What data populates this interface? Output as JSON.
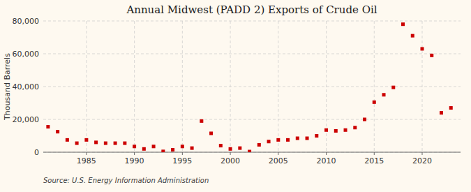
{
  "chart_data": {
    "type": "scatter",
    "title": "Annual Midwest (PADD 2) Exports of Crude Oil",
    "ylabel": "Thousand Barrels",
    "annotations": [
      "Source: U.S. Energy Information Administration"
    ],
    "x": [
      1981,
      1982,
      1983,
      1984,
      1985,
      1986,
      1987,
      1988,
      1989,
      1990,
      1991,
      1992,
      1993,
      1994,
      1995,
      1996,
      1997,
      1998,
      1999,
      2000,
      2001,
      2002,
      2003,
      2004,
      2005,
      2006,
      2007,
      2008,
      2009,
      2010,
      2011,
      2012,
      2013,
      2014,
      2015,
      2016,
      2017,
      2018,
      2019,
      2020,
      2021,
      2022,
      2023
    ],
    "values": [
      15500,
      12500,
      7500,
      5500,
      7500,
      6000,
      5500,
      5500,
      5500,
      3500,
      2000,
      3500,
      500,
      1500,
      3500,
      2500,
      19000,
      11500,
      4000,
      2000,
      2500,
      400,
      4500,
      6500,
      7500,
      7500,
      8500,
      8500,
      10000,
      13500,
      13000,
      13500,
      15000,
      20000,
      30500,
      35000,
      39500,
      78000,
      71000,
      63000,
      59000,
      24000,
      27000
    ],
    "color": "#cc0000",
    "marker": "square",
    "xlim": [
      1980.5,
      2024
    ],
    "ylim": [
      0,
      80000
    ],
    "xticks": [
      1985,
      1990,
      1995,
      2000,
      2005,
      2010,
      2015,
      2020
    ],
    "yticks": [
      0,
      {
        "value": 20000,
        "label": "20,000"
      },
      {
        "value": 40000,
        "label": "40,000"
      },
      {
        "value": 60000,
        "label": "60,000"
      },
      {
        "value": 80000,
        "label": "80,000"
      }
    ],
    "grid": true
  }
}
